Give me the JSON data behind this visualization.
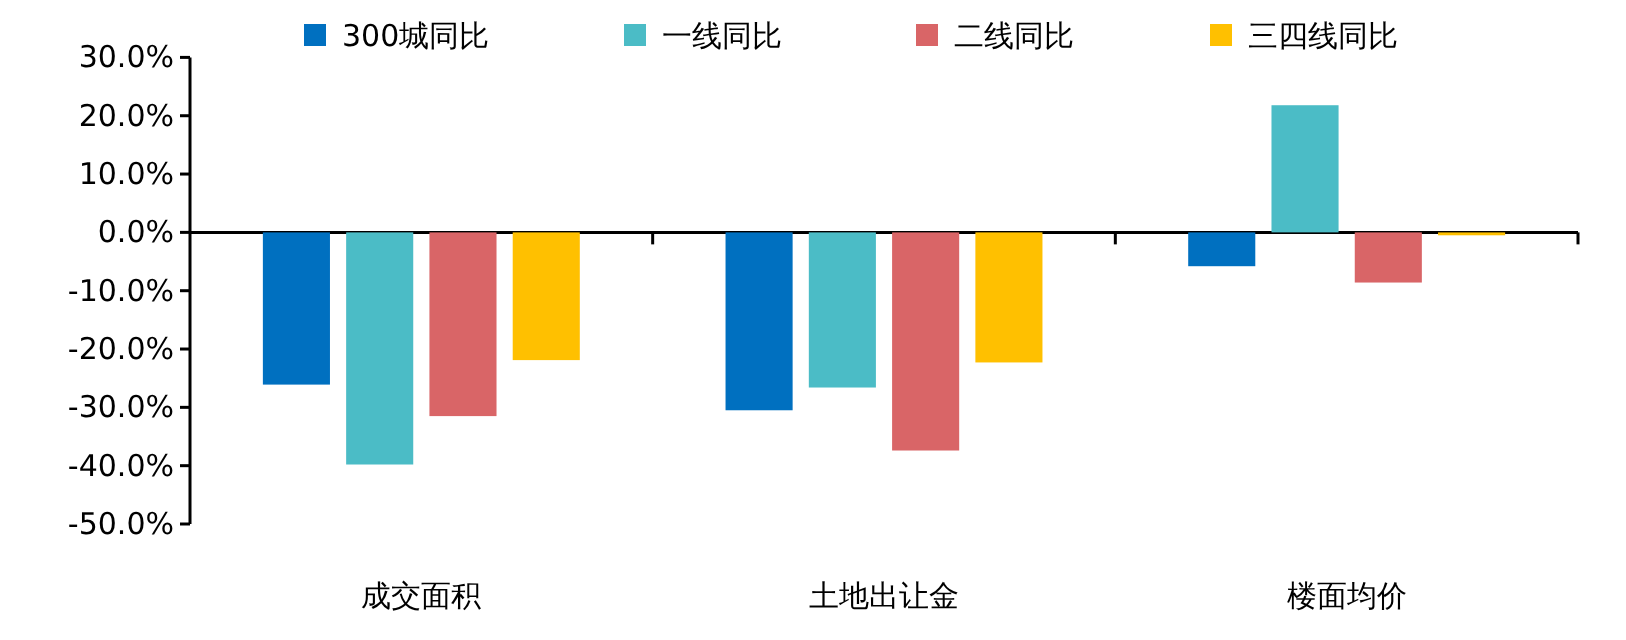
{
  "chart_data": {
    "type": "bar",
    "categories": [
      "成交面积",
      "土地出让金",
      "楼面均价"
    ],
    "series": [
      {
        "name": "300城同比",
        "color": "#0070c0",
        "values": [
          -26.1,
          -30.5,
          -5.8
        ]
      },
      {
        "name": "一线同比",
        "color": "#4bbcc6",
        "values": [
          -39.8,
          -26.6,
          21.8
        ]
      },
      {
        "name": "二线同比",
        "color": "#d96567",
        "values": [
          -31.5,
          -37.4,
          -8.6
        ]
      },
      {
        "name": "三四线同比",
        "color": "#ffc000",
        "values": [
          -21.9,
          -22.3,
          -0.5
        ]
      }
    ],
    "ylim": [
      -50,
      30
    ],
    "yticks": [
      {
        "value": -50,
        "label": "-50.0%"
      },
      {
        "value": -40,
        "label": "-40.0%"
      },
      {
        "value": -30,
        "label": "-30.0%"
      },
      {
        "value": -20,
        "label": "-20.0%"
      },
      {
        "value": -10,
        "label": "-10.0%"
      },
      {
        "value": 0,
        "label": "0.0%"
      },
      {
        "value": 10,
        "label": "10.0%"
      },
      {
        "value": 20,
        "label": "20.0%"
      },
      {
        "value": 30,
        "label": "30.0%"
      }
    ],
    "legend": "top"
  }
}
